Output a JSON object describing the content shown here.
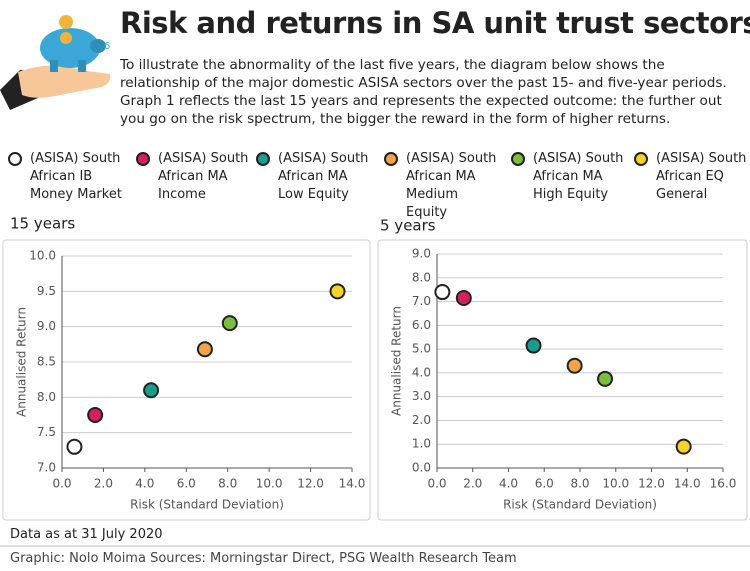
{
  "title": "Risk and returns in SA unit trust sectors",
  "intro": "To illustrate the abnormality of the last five years, the diagram below shows the relationship of the major domestic ASISA sectors over the past 15- and five-year periods. Graph 1 reflects the last 15 years and represents the expected outcome: the further out you go on the risk spectrum, the bigger the reward in the form of higher returns.",
  "chart_data": [
    {
      "type": "scatter",
      "title": "15 years",
      "x_label": "Risk (Standard Deviation)",
      "y_label": "Annualised Return",
      "xlim": [
        0,
        14
      ],
      "xticks": [
        {
          "value": 0,
          "label": "0.0"
        },
        {
          "value": 2,
          "label": "2.0"
        },
        {
          "value": 4,
          "label": "4.0"
        },
        {
          "value": 6,
          "label": "6.0"
        },
        {
          "value": 8,
          "label": "8.0"
        },
        {
          "value": 10,
          "label": "10.0"
        },
        {
          "value": 12,
          "label": "12.0"
        },
        {
          "value": 14,
          "label": "14.0"
        }
      ],
      "ylim": [
        7,
        10
      ],
      "yticks": [
        {
          "value": 7,
          "label": "7.0"
        },
        7.5,
        {
          "value": 8,
          "label": "8.0"
        },
        8.5,
        {
          "value": 9,
          "label": "9.0"
        },
        9.5,
        {
          "value": 10,
          "label": "10.0"
        }
      ],
      "grid": true,
      "series": [
        {
          "name": "(ASISA) South African IB Money Market",
          "color": "#ffffff",
          "x": [
            0.6
          ],
          "values": [
            7.3
          ]
        },
        {
          "name": "(ASISA) South African MA Income",
          "color": "#d6205c",
          "x": [
            1.6
          ],
          "values": [
            7.75
          ]
        },
        {
          "name": "(ASISA) South African MA Low Equity",
          "color": "#1a9c8c",
          "x": [
            4.3
          ],
          "values": [
            8.1
          ]
        },
        {
          "name": "(ASISA) South African MA Medium Equity",
          "color": "#f2a44b",
          "x": [
            6.9
          ],
          "values": [
            8.68
          ]
        },
        {
          "name": "(ASISA) South African MA High Equity",
          "color": "#7cbd3d",
          "x": [
            8.1
          ],
          "values": [
            9.05
          ]
        },
        {
          "name": "(ASISA) South African EQ General",
          "color": "#f6d426",
          "x": [
            13.3
          ],
          "values": [
            9.5
          ]
        }
      ]
    },
    {
      "type": "scatter",
      "title": "5 years",
      "x_label": "Risk (Standard Deviation)",
      "y_label": "Annualised Return",
      "xlim": [
        0,
        16
      ],
      "xticks": [
        {
          "value": 0,
          "label": "0.0"
        },
        {
          "value": 2,
          "label": "2.0"
        },
        {
          "value": 4,
          "label": "4.0"
        },
        {
          "value": 6,
          "label": "6.0"
        },
        {
          "value": 8,
          "label": "8.0"
        },
        {
          "value": 10,
          "label": "10.0"
        },
        {
          "value": 12,
          "label": "12.0"
        },
        {
          "value": 14,
          "label": "14.0"
        },
        {
          "value": 16,
          "label": "16.0"
        }
      ],
      "ylim": [
        0,
        9
      ],
      "yticks": [
        {
          "value": 0,
          "label": "0.0"
        },
        {
          "value": 1,
          "label": "1.0"
        },
        {
          "value": 2,
          "label": "2.0"
        },
        {
          "value": 3,
          "label": "3.0"
        },
        {
          "value": 4,
          "label": "4.0"
        },
        {
          "value": 5,
          "label": "5.0"
        },
        {
          "value": 6,
          "label": "6.0"
        },
        {
          "value": 7,
          "label": "7.0"
        },
        {
          "value": 8,
          "label": "8.0"
        },
        {
          "value": 9,
          "label": "9.0"
        }
      ],
      "grid": true,
      "series": [
        {
          "color": "#ffffff",
          "x": [
            0.3
          ],
          "values": [
            7.4
          ]
        },
        {
          "color": "#d6205c",
          "x": [
            1.5
          ],
          "values": [
            7.15
          ]
        },
        {
          "color": "#1a9c8c",
          "x": [
            5.4
          ],
          "values": [
            5.15
          ]
        },
        {
          "color": "#f2a44b",
          "x": [
            7.7
          ],
          "values": [
            4.3
          ]
        },
        {
          "color": "#7cbd3d",
          "x": [
            9.4
          ],
          "values": [
            3.75
          ]
        },
        {
          "color": "#f6d426",
          "x": [
            13.8
          ],
          "values": [
            0.9
          ]
        }
      ]
    }
  ],
  "note": "Data as at 31 July 2020",
  "credit": "Graphic: Nolo Moima Sources: Morningstar Direct, PSG Wealth Research Team"
}
